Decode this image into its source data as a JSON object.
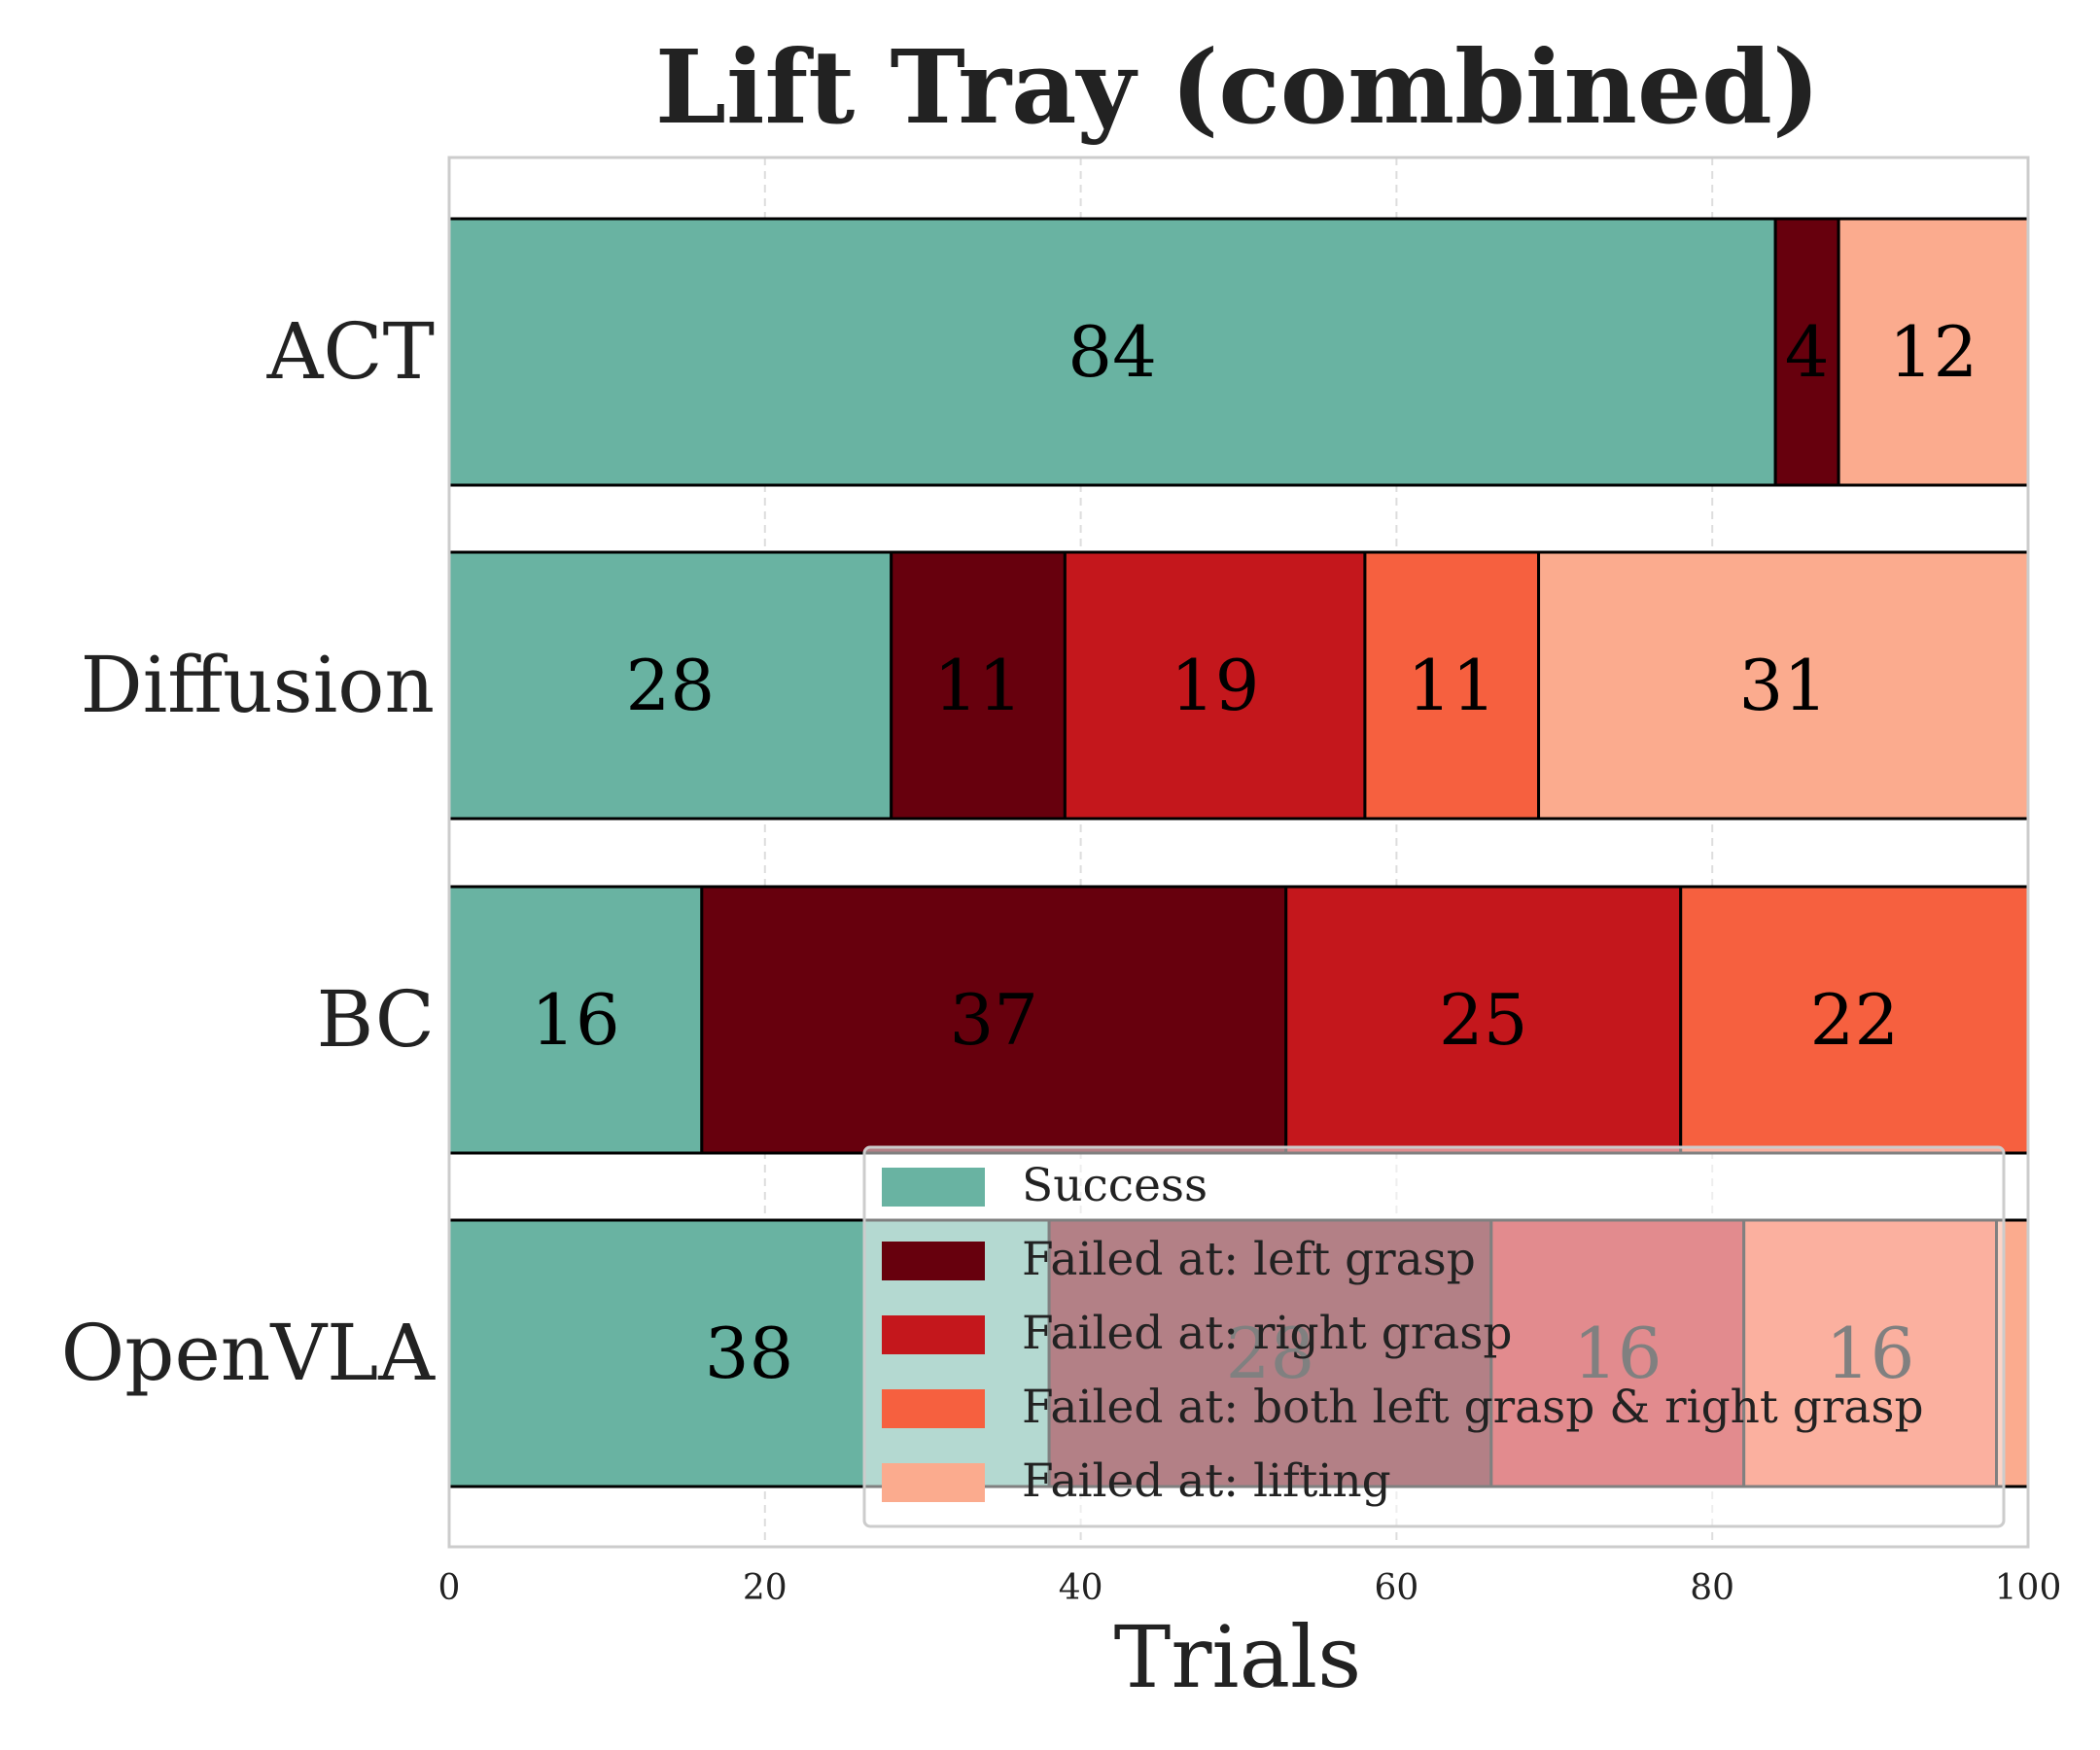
{
  "chart_data": {
    "type": "bar",
    "orientation": "horizontal",
    "stacked": true,
    "title": "Lift Tray (combined)",
    "xlabel": "Trials",
    "ylabel": "",
    "xlim": [
      0,
      100
    ],
    "xticks": [
      "0",
      "20",
      "40",
      "60",
      "80",
      "100"
    ],
    "xtick_values": [
      0,
      20,
      40,
      60,
      80,
      100
    ],
    "grid": true,
    "legend_position": "lower-right",
    "categories": [
      "ACT",
      "Diffusion",
      "BC",
      "OpenVLA"
    ],
    "series": [
      {
        "name": "Success",
        "color": "#69b3a2",
        "values": [
          84,
          28,
          16,
          38
        ]
      },
      {
        "name": "Failed at: left grasp",
        "color": "#67000d",
        "values": [
          4,
          11,
          37,
          28
        ]
      },
      {
        "name": "Failed at: right grasp",
        "color": "#c4171c",
        "values": [
          0,
          19,
          25,
          16
        ]
      },
      {
        "name": "Failed at: both left grasp & right grasp",
        "color": "#f6603f",
        "values": [
          0,
          11,
          22,
          16
        ]
      },
      {
        "name": "Failed at: lifting",
        "color": "#fbab8e",
        "values": [
          12,
          31,
          0,
          2
        ]
      }
    ],
    "data_labels": [
      [
        "84",
        "4",
        "",
        "",
        "12"
      ],
      [
        "28",
        "11",
        "19",
        "11",
        "31"
      ],
      [
        "16",
        "37",
        "25",
        "22",
        ""
      ],
      [
        "38",
        "28",
        "16",
        "16",
        ""
      ]
    ]
  }
}
